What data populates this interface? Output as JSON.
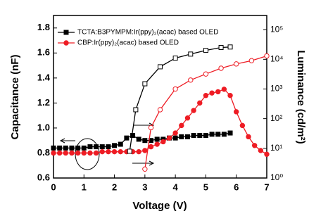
{
  "chart_data": {
    "type": "line",
    "xlabel": "Voltage (V)",
    "ylabel": "Capacitance (nF)",
    "y2label": "Luminance (cd/m²)",
    "xlim": [
      0,
      7
    ],
    "xticks": [
      0,
      1,
      2,
      3,
      4,
      5,
      6,
      7
    ],
    "ylim": [
      0.6,
      1.9
    ],
    "yticks": [
      0.6,
      0.8,
      {
        "value": 1,
        "label": "1.0"
      },
      1.2,
      1.4,
      1.6,
      1.8
    ],
    "y2lim": [
      1,
      300000
    ],
    "y2log": true,
    "y2ticks": [
      {
        "value": 1,
        "label": "10⁰"
      },
      {
        "value": 10,
        "label": "10¹"
      },
      {
        "value": 100,
        "label": "10²"
      },
      {
        "value": 1000,
        "label": "10³"
      },
      {
        "value": 10000,
        "label": "10⁴"
      },
      {
        "value": 100000,
        "label": "10⁵"
      }
    ],
    "legend": "upper left",
    "series": [
      {
        "name": "TCTA:B3PYMPM:Ir(ppy)₂(acac) based OLED",
        "color": "#000000",
        "marker": "square",
        "filled": true,
        "x": [
          0,
          0.2,
          0.4,
          0.6,
          0.8,
          1,
          1.2,
          1.4,
          1.6,
          1.8,
          2,
          2.2,
          2.4,
          2.6,
          2.8,
          3,
          3.2,
          3.4,
          3.6,
          3.8,
          4,
          4.2,
          4.4,
          4.6,
          4.8,
          5,
          5.2,
          5.4,
          5.6,
          5.8
        ],
        "values": [
          0.84,
          0.84,
          0.84,
          0.84,
          0.84,
          0.84,
          0.85,
          0.85,
          0.85,
          0.85,
          0.86,
          0.87,
          0.92,
          0.94,
          0.91,
          0.9,
          0.9,
          0.91,
          0.91,
          0.92,
          0.92,
          0.93,
          0.93,
          0.94,
          0.94,
          0.94,
          0.95,
          0.95,
          0.95,
          0.96
        ]
      },
      {
        "name": "CBP:Ir(ppy)₂(acac) based OLED",
        "color": "#ee1c24",
        "marker": "circle",
        "filled": true,
        "x": [
          0,
          0.2,
          0.4,
          0.6,
          0.8,
          1,
          1.2,
          1.4,
          1.6,
          1.8,
          2,
          2.2,
          2.4,
          2.6,
          2.8,
          3,
          3.2,
          3.4,
          3.6,
          3.8,
          4,
          4.2,
          4.4,
          4.6,
          4.8,
          5,
          5.2,
          5.4,
          5.6,
          5.8,
          6,
          6.2,
          6.4,
          6.6,
          6.8,
          7
        ],
        "values": [
          0.8,
          0.8,
          0.8,
          0.8,
          0.8,
          0.8,
          0.8,
          0.8,
          0.81,
          0.81,
          0.81,
          0.81,
          0.81,
          0.81,
          0.81,
          0.82,
          0.85,
          0.87,
          0.89,
          0.92,
          0.96,
          1.02,
          1.08,
          1.14,
          1.2,
          1.26,
          1.28,
          1.29,
          1.31,
          1.26,
          1.13,
          1.02,
          0.93,
          0.86,
          0.82,
          0.79
        ]
      },
      {
        "color": "#000000",
        "marker": "square",
        "filled": false,
        "axis": "y2",
        "x": [
          2.5,
          2.7,
          3,
          3.5,
          4,
          4.5,
          5,
          5.5,
          5.8
        ],
        "values": [
          8,
          200,
          1500,
          5600,
          11000,
          15000,
          20000,
          25000,
          26000
        ]
      },
      {
        "color": "#ee1c24",
        "marker": "circle",
        "filled": false,
        "axis": "y2",
        "x": [
          3,
          3.2,
          3.5,
          4,
          4.5,
          5,
          5.5,
          6,
          6.5,
          7
        ],
        "values": [
          2,
          50,
          200,
          1000,
          2000,
          3200,
          5000,
          7000,
          9000,
          13000
        ]
      }
    ]
  }
}
